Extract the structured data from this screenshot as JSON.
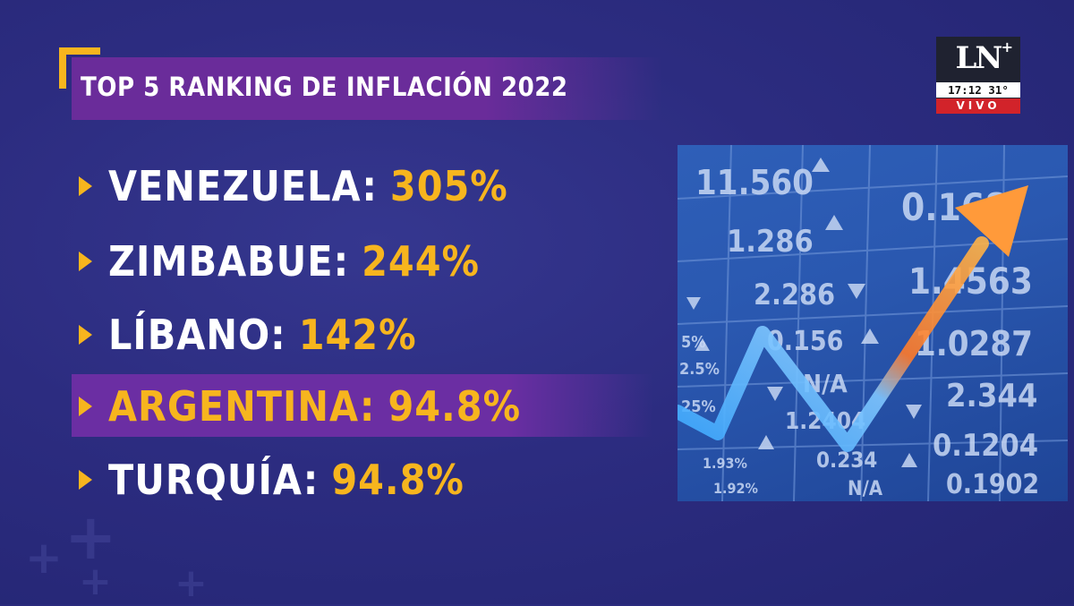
{
  "title": "TOP 5 RANKING DE INFLACIÓN 2022",
  "ranking": [
    {
      "country": "VENEZUELA:",
      "value": "305%",
      "highlighted": false
    },
    {
      "country": "ZIMBABUE:",
      "value": "244%",
      "highlighted": false
    },
    {
      "country": "LÍBANO:",
      "value": "142%",
      "highlighted": false
    },
    {
      "country": "ARGENTINA:",
      "value": "94.8%",
      "highlighted": true
    },
    {
      "country": "TURQUÍA:",
      "value": "94.8%",
      "highlighted": false
    }
  ],
  "logo": {
    "text": "LN",
    "plus": "+",
    "time": "17:12",
    "temperature": "31°",
    "live": "VIVO"
  },
  "photo": {
    "tickers": [
      "11.560",
      "1.286",
      "2.286",
      "0.156",
      "N/A",
      "1.2404",
      "0.234",
      "N/A",
      "0.168",
      "1.4563",
      "1.0287",
      "2.344",
      "0.1204",
      "0.1902",
      "1.93%",
      "1.92%",
      "2.5%",
      "25%",
      "5%"
    ]
  },
  "colors": {
    "accent": "#f7b51e",
    "band": "#6a2c9a",
    "background": "#2c2c80",
    "live": "#d2232a"
  }
}
